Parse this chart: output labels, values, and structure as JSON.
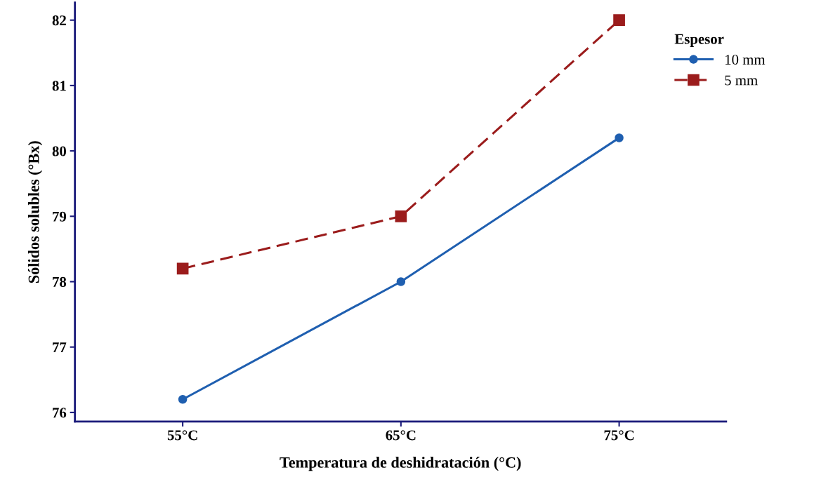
{
  "chart_data": {
    "type": "line",
    "xlabel": "Temperatura de deshidratación (°C)",
    "ylabel": "Sólidos solubles (°Bx)",
    "legend_title": "Espesor",
    "x": [
      55,
      65,
      75
    ],
    "xlim": [
      50.06,
      79.9
    ],
    "xticks": [
      {
        "value": 55,
        "label": "55°C"
      },
      {
        "value": 65,
        "label": "65°C"
      },
      {
        "value": 75,
        "label": "75°C"
      }
    ],
    "series": [
      {
        "name": "10 mm",
        "color": "#1f5fb0",
        "values": [
          76.2,
          78.0,
          80.2
        ],
        "marker": "circle",
        "line_style": "solid"
      },
      {
        "name": "5 mm",
        "color": "#9b1c1c",
        "values": [
          78.2,
          79.0,
          82.0
        ],
        "marker": "square",
        "line_style": "dashed"
      }
    ],
    "ylim": [
      75.86,
      82.27
    ],
    "yticks": [
      76,
      77,
      78,
      79,
      80,
      81,
      82
    ],
    "grid": false,
    "legend": "top right"
  }
}
